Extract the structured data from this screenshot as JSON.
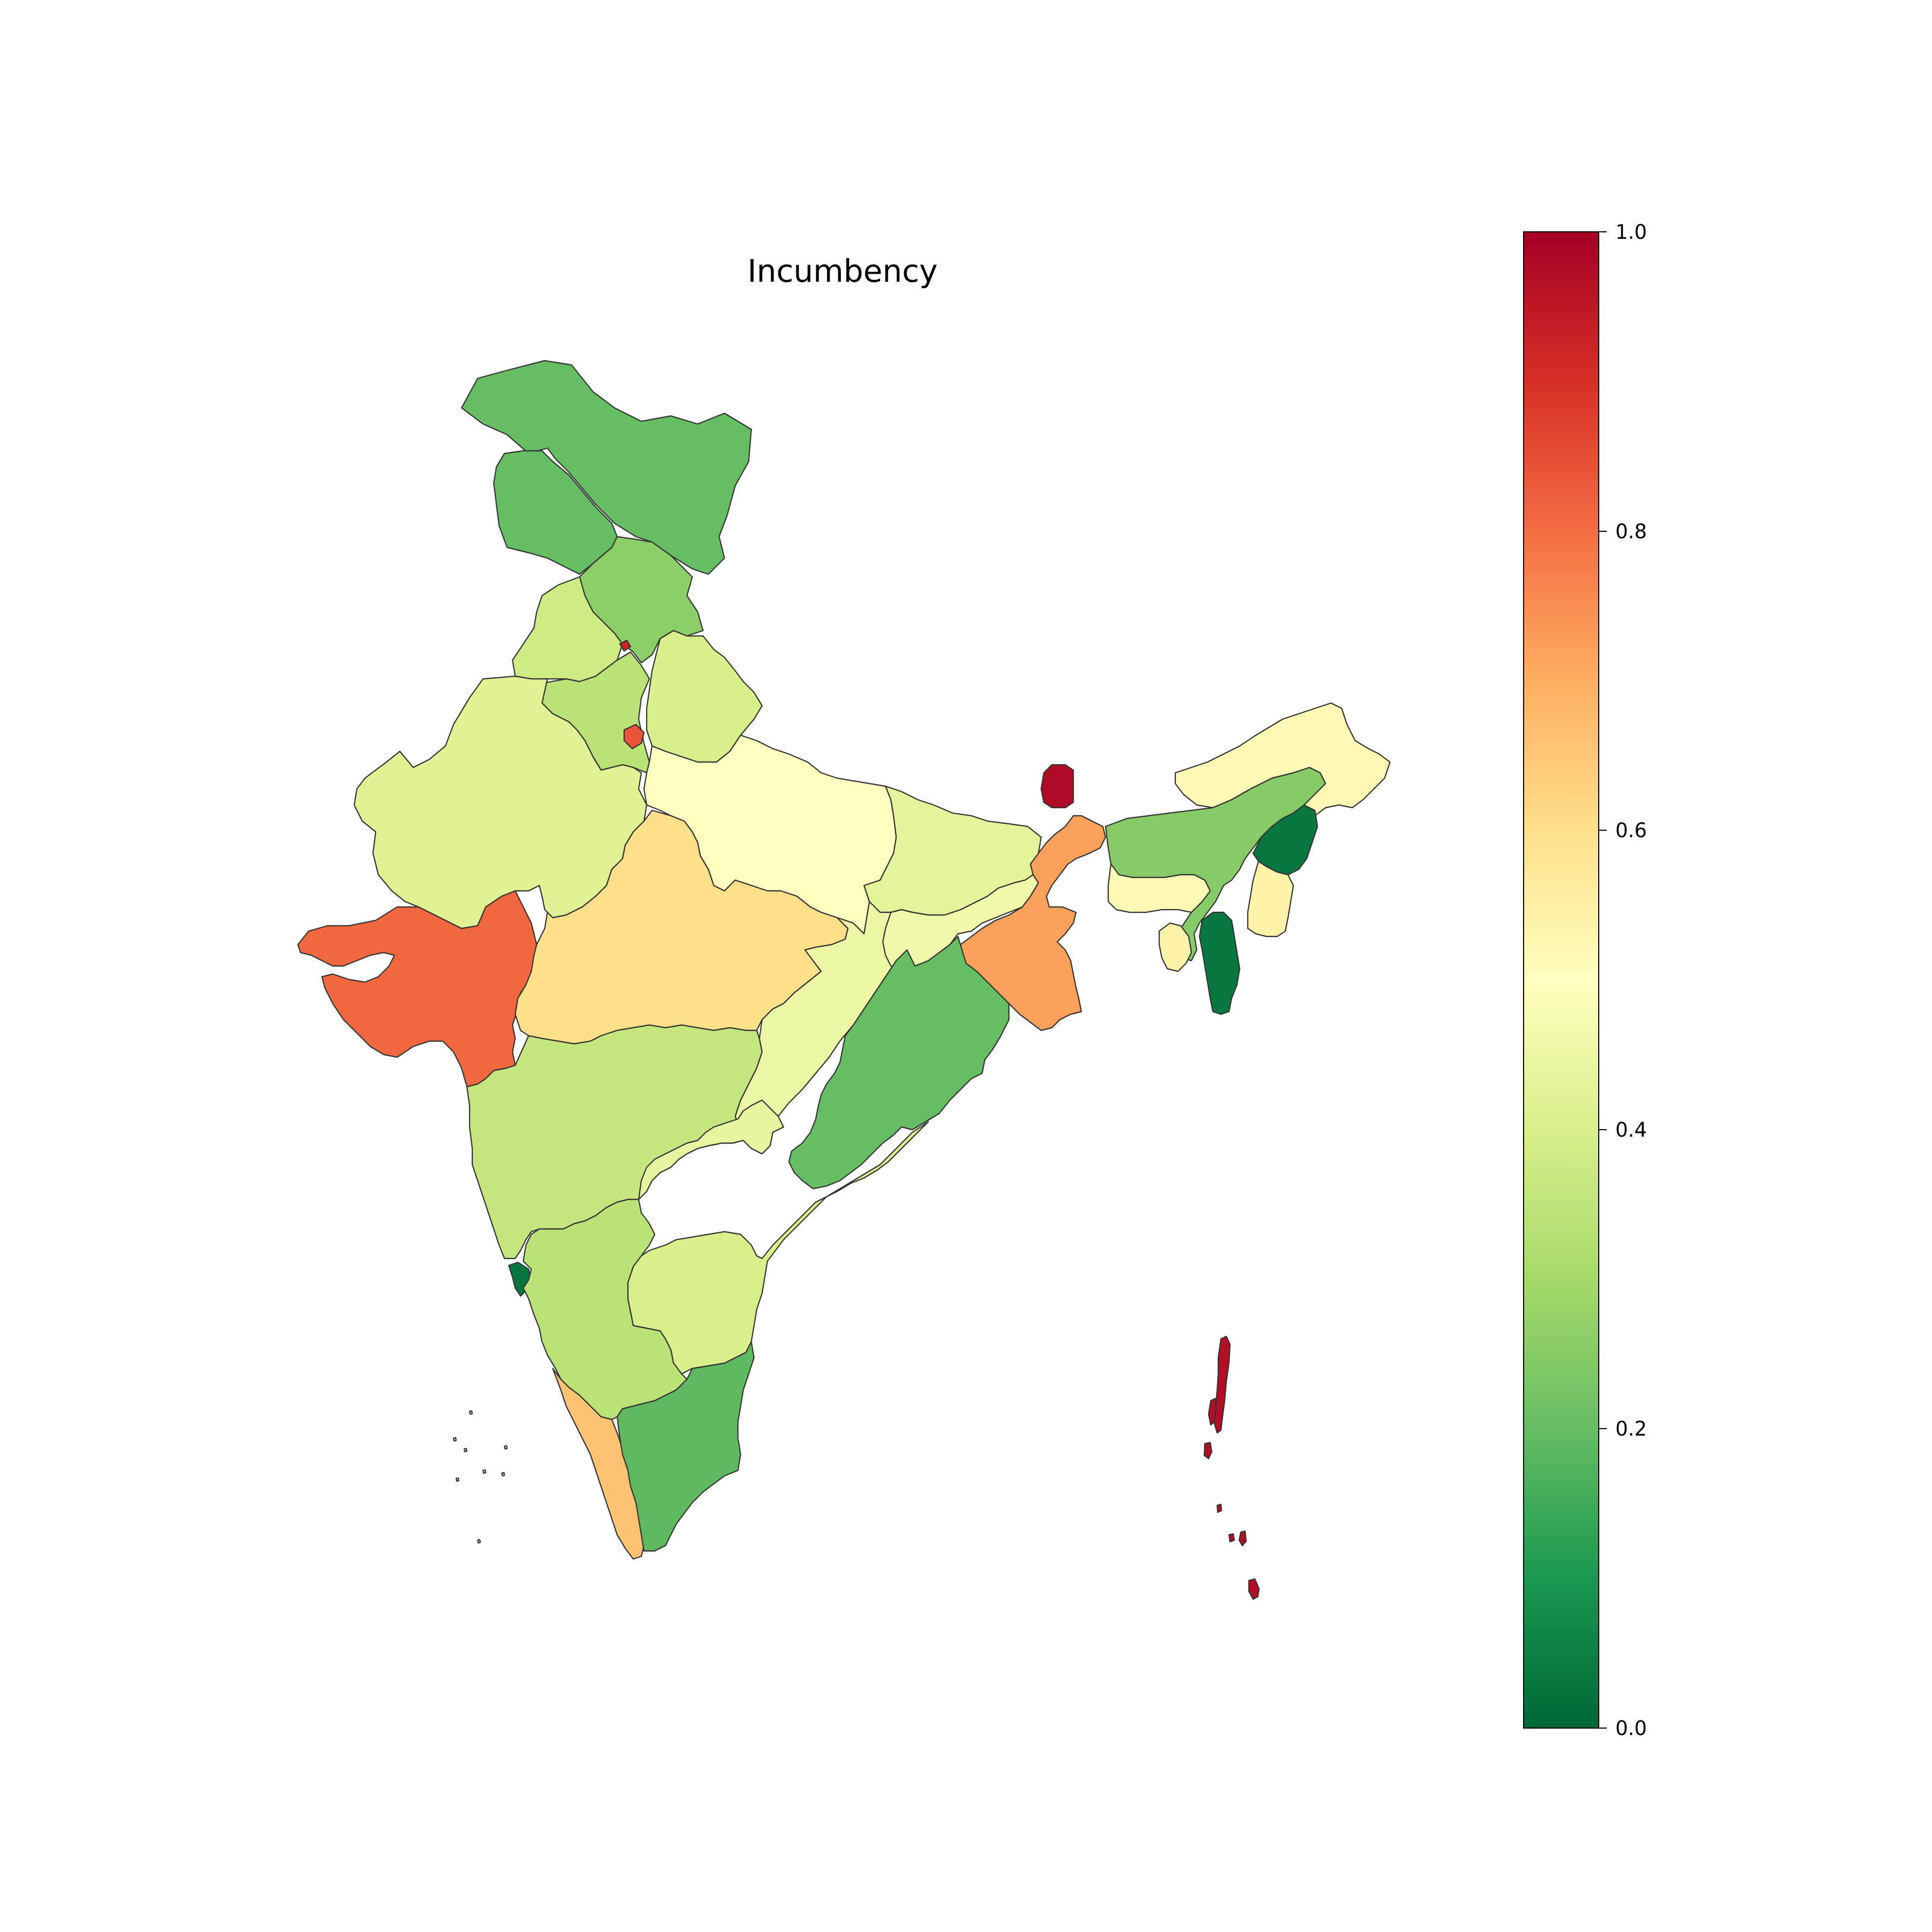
{
  "title": "Incumbency",
  "colorbar": {
    "colormap": "RdYlGn_r",
    "range": [
      0.0,
      1.0
    ],
    "ticks": [
      "0.0",
      "0.2",
      "0.4",
      "0.6",
      "0.8",
      "1.0"
    ],
    "stops": [
      "#006837",
      "#1a9850",
      "#66bd63",
      "#a6d96a",
      "#d9ef8b",
      "#ffffbf",
      "#fee08b",
      "#fdae61",
      "#f46d43",
      "#d73027",
      "#a50026"
    ]
  },
  "regions": [
    {
      "name": "Jammu and Kashmir",
      "value": 0.2
    },
    {
      "name": "Ladakh",
      "value": 0.2
    },
    {
      "name": "Himachal Pradesh",
      "value": 0.26
    },
    {
      "name": "Punjab",
      "value": 0.38
    },
    {
      "name": "Chandigarh",
      "value": 0.92
    },
    {
      "name": "Haryana",
      "value": 0.34
    },
    {
      "name": "Delhi",
      "value": 0.84
    },
    {
      "name": "Rajasthan",
      "value": 0.42
    },
    {
      "name": "Uttarakhand",
      "value": 0.4
    },
    {
      "name": "Uttar Pradesh",
      "value": 0.5
    },
    {
      "name": "Bihar",
      "value": 0.43
    },
    {
      "name": "Gujarat",
      "value": 0.81
    },
    {
      "name": "Madhya Pradesh",
      "value": 0.6
    },
    {
      "name": "Chhattisgarh",
      "value": 0.45
    },
    {
      "name": "Jharkhand",
      "value": 0.46
    },
    {
      "name": "West Bengal",
      "value": 0.72
    },
    {
      "name": "Sikkim",
      "value": 0.98
    },
    {
      "name": "Odisha",
      "value": 0.2
    },
    {
      "name": "Maharashtra",
      "value": 0.36
    },
    {
      "name": "Telangana",
      "value": 0.44
    },
    {
      "name": "Andhra Pradesh",
      "value": 0.4
    },
    {
      "name": "Goa",
      "value": 0.03
    },
    {
      "name": "Karnataka",
      "value": 0.34
    },
    {
      "name": "Kerala",
      "value": 0.66
    },
    {
      "name": "Tamil Nadu",
      "value": 0.19
    },
    {
      "name": "Assam",
      "value": 0.25
    },
    {
      "name": "Arunachal Pradesh",
      "value": 0.52
    },
    {
      "name": "Nagaland",
      "value": 0.03
    },
    {
      "name": "Meghalaya",
      "value": 0.52
    },
    {
      "name": "Manipur",
      "value": 0.54
    },
    {
      "name": "Mizoram",
      "value": 0.03
    },
    {
      "name": "Tripura",
      "value": 0.54
    },
    {
      "name": "Andaman and Nicobar Islands",
      "value": 0.97
    },
    {
      "name": "Lakshadweep",
      "value": 0.5
    }
  ]
}
